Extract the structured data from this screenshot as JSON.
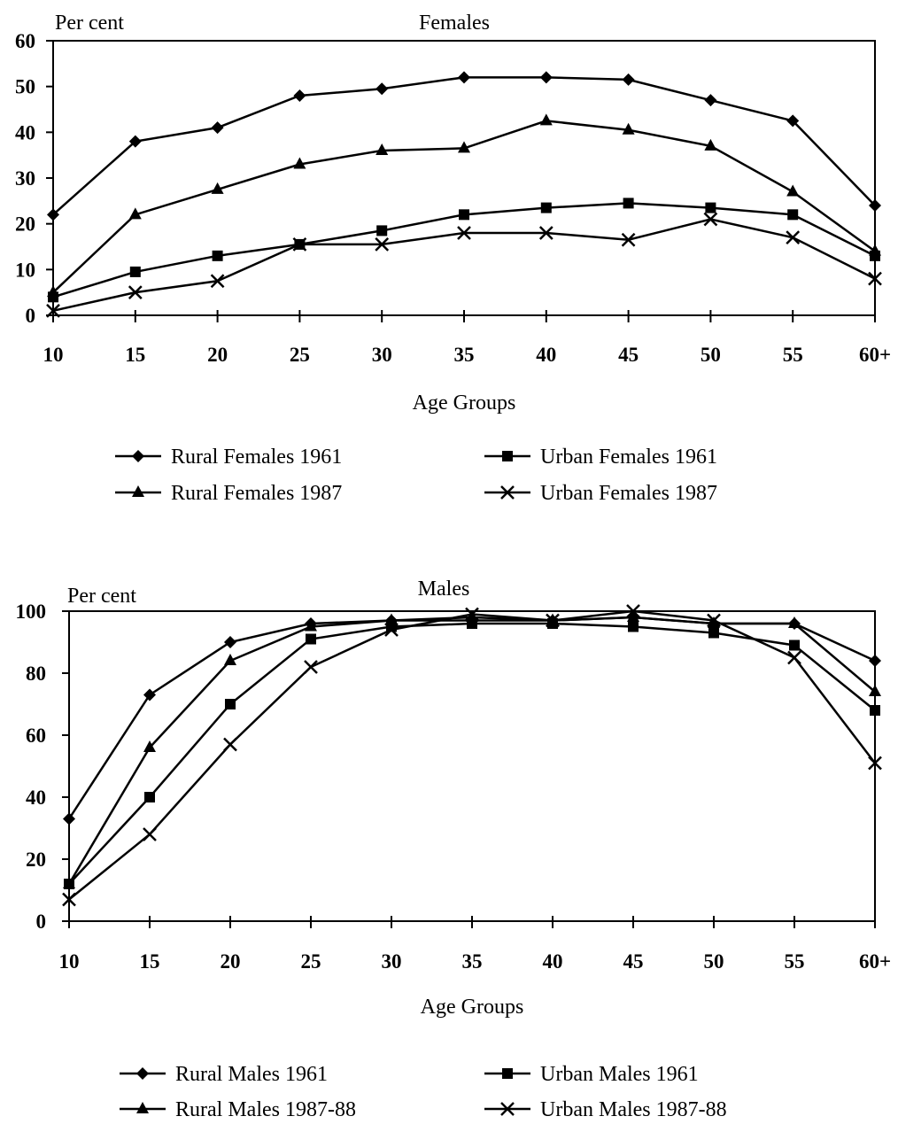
{
  "chart_data": [
    {
      "type": "line",
      "title": "Females",
      "ylabel": "Per cent",
      "xlabel": "Age Groups",
      "ylim": [
        0,
        60
      ],
      "yticks": [
        0,
        10,
        20,
        30,
        40,
        50,
        60
      ],
      "categories": [
        "10",
        "15",
        "20",
        "25",
        "30",
        "35",
        "40",
        "45",
        "50",
        "55",
        "60+"
      ],
      "grid": false,
      "legend_position": "bottom",
      "series": [
        {
          "name": "Rural Females 1961",
          "marker": "diamond",
          "values": [
            22,
            38,
            41,
            48,
            49.5,
            52,
            52,
            51.5,
            47,
            42.5,
            24
          ]
        },
        {
          "name": "Urban  Females 1961",
          "marker": "square",
          "values": [
            4,
            9.5,
            13,
            15.5,
            18.5,
            22,
            23.5,
            24.5,
            23.5,
            22,
            13
          ]
        },
        {
          "name": "Rural Females 1987",
          "marker": "triangle",
          "values": [
            5,
            22,
            27.5,
            33,
            36,
            36.5,
            42.5,
            40.5,
            37,
            27,
            14
          ]
        },
        {
          "name": "Urban Females 1987",
          "marker": "cross",
          "values": [
            1,
            5,
            7.5,
            15.5,
            15.5,
            18,
            18,
            16.5,
            21,
            17,
            8
          ]
        }
      ]
    },
    {
      "type": "line",
      "title": "Males",
      "ylabel": "Per cent",
      "xlabel": "Age Groups",
      "ylim": [
        0,
        100
      ],
      "yticks": [
        0,
        20,
        40,
        60,
        80,
        100
      ],
      "categories": [
        "10",
        "15",
        "20",
        "25",
        "30",
        "35",
        "40",
        "45",
        "50",
        "55",
        "60+"
      ],
      "grid": false,
      "legend_position": "bottom",
      "series": [
        {
          "name": "Rural Males 1961",
          "marker": "diamond",
          "values": [
            33,
            73,
            90,
            96,
            97,
            97,
            97,
            98,
            96,
            96,
            84
          ]
        },
        {
          "name": "Urban  Males 1961",
          "marker": "square",
          "values": [
            12,
            40,
            70,
            91,
            95,
            96,
            96,
            95,
            93,
            89,
            68
          ]
        },
        {
          "name": "Rural Males 1987-88",
          "marker": "triangle",
          "values": [
            12,
            56,
            84,
            95,
            97,
            98,
            97,
            98,
            96,
            96,
            74
          ]
        },
        {
          "name": "Urban Males 1987-88",
          "marker": "cross",
          "values": [
            7,
            28,
            57,
            82,
            94,
            99,
            97,
            100,
            97,
            85,
            51
          ]
        }
      ]
    }
  ]
}
